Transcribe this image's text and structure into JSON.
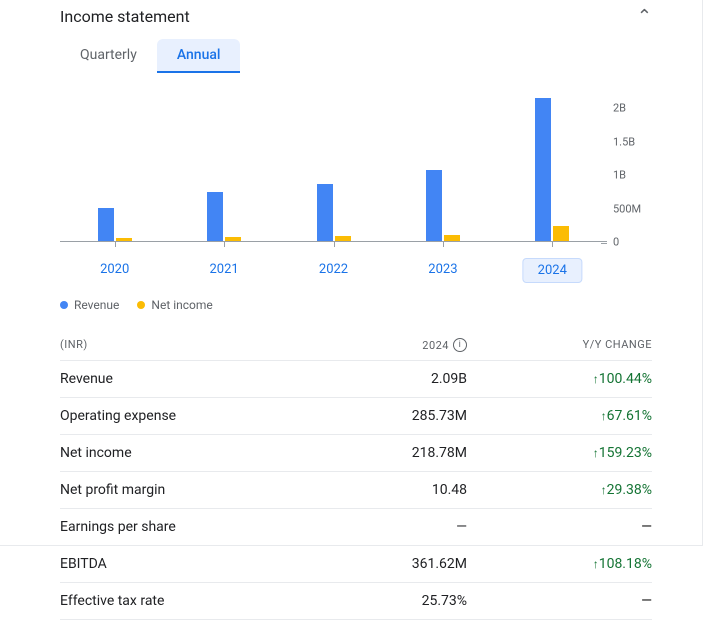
{
  "section": {
    "title": "Income statement"
  },
  "tabs": {
    "quarterly": "Quarterly",
    "annual": "Annual",
    "active": "annual"
  },
  "chart": {
    "type": "grouped-bar",
    "ymax": 2100000000,
    "y_ticks": [
      "2B",
      "1.5B",
      "1B",
      "500M",
      "0"
    ],
    "series": [
      {
        "key": "revenue",
        "label": "Revenue",
        "color": "#4285f4"
      },
      {
        "key": "net_income",
        "label": "Net income",
        "color": "#fbbc04"
      }
    ],
    "years": [
      {
        "label": "2020",
        "revenue": 480000000,
        "net_income": 40000000,
        "active": false
      },
      {
        "label": "2021",
        "revenue": 720000000,
        "net_income": 60000000,
        "active": false
      },
      {
        "label": "2022",
        "revenue": 830000000,
        "net_income": 70000000,
        "active": false
      },
      {
        "label": "2023",
        "revenue": 1040000000,
        "net_income": 85000000,
        "active": false
      },
      {
        "label": "2024",
        "revenue": 2090000000,
        "net_income": 218780000,
        "active": true
      }
    ],
    "colors": {
      "axis": "#9aa0a6",
      "background": "#ffffff"
    },
    "fontsize": {
      "tick": 11,
      "label": 13
    }
  },
  "table": {
    "currency_label": "(INR)",
    "year_label": "2024",
    "change_label": "Y/Y CHANGE",
    "rows": [
      {
        "metric": "Revenue",
        "value": "2.09B",
        "change": "100.44%",
        "dir": "up"
      },
      {
        "metric": "Operating expense",
        "value": "285.73M",
        "change": "67.61%",
        "dir": "up"
      },
      {
        "metric": "Net income",
        "value": "218.78M",
        "change": "159.23%",
        "dir": "up"
      },
      {
        "metric": "Net profit margin",
        "value": "10.48",
        "change": "29.38%",
        "dir": "up"
      },
      {
        "metric": "Earnings per share",
        "value": "—",
        "change": "—",
        "dir": "none"
      },
      {
        "metric": "EBITDA",
        "value": "361.62M",
        "change": "108.18%",
        "dir": "up"
      },
      {
        "metric": "Effective tax rate",
        "value": "25.73%",
        "change": "—",
        "dir": "none"
      }
    ]
  }
}
